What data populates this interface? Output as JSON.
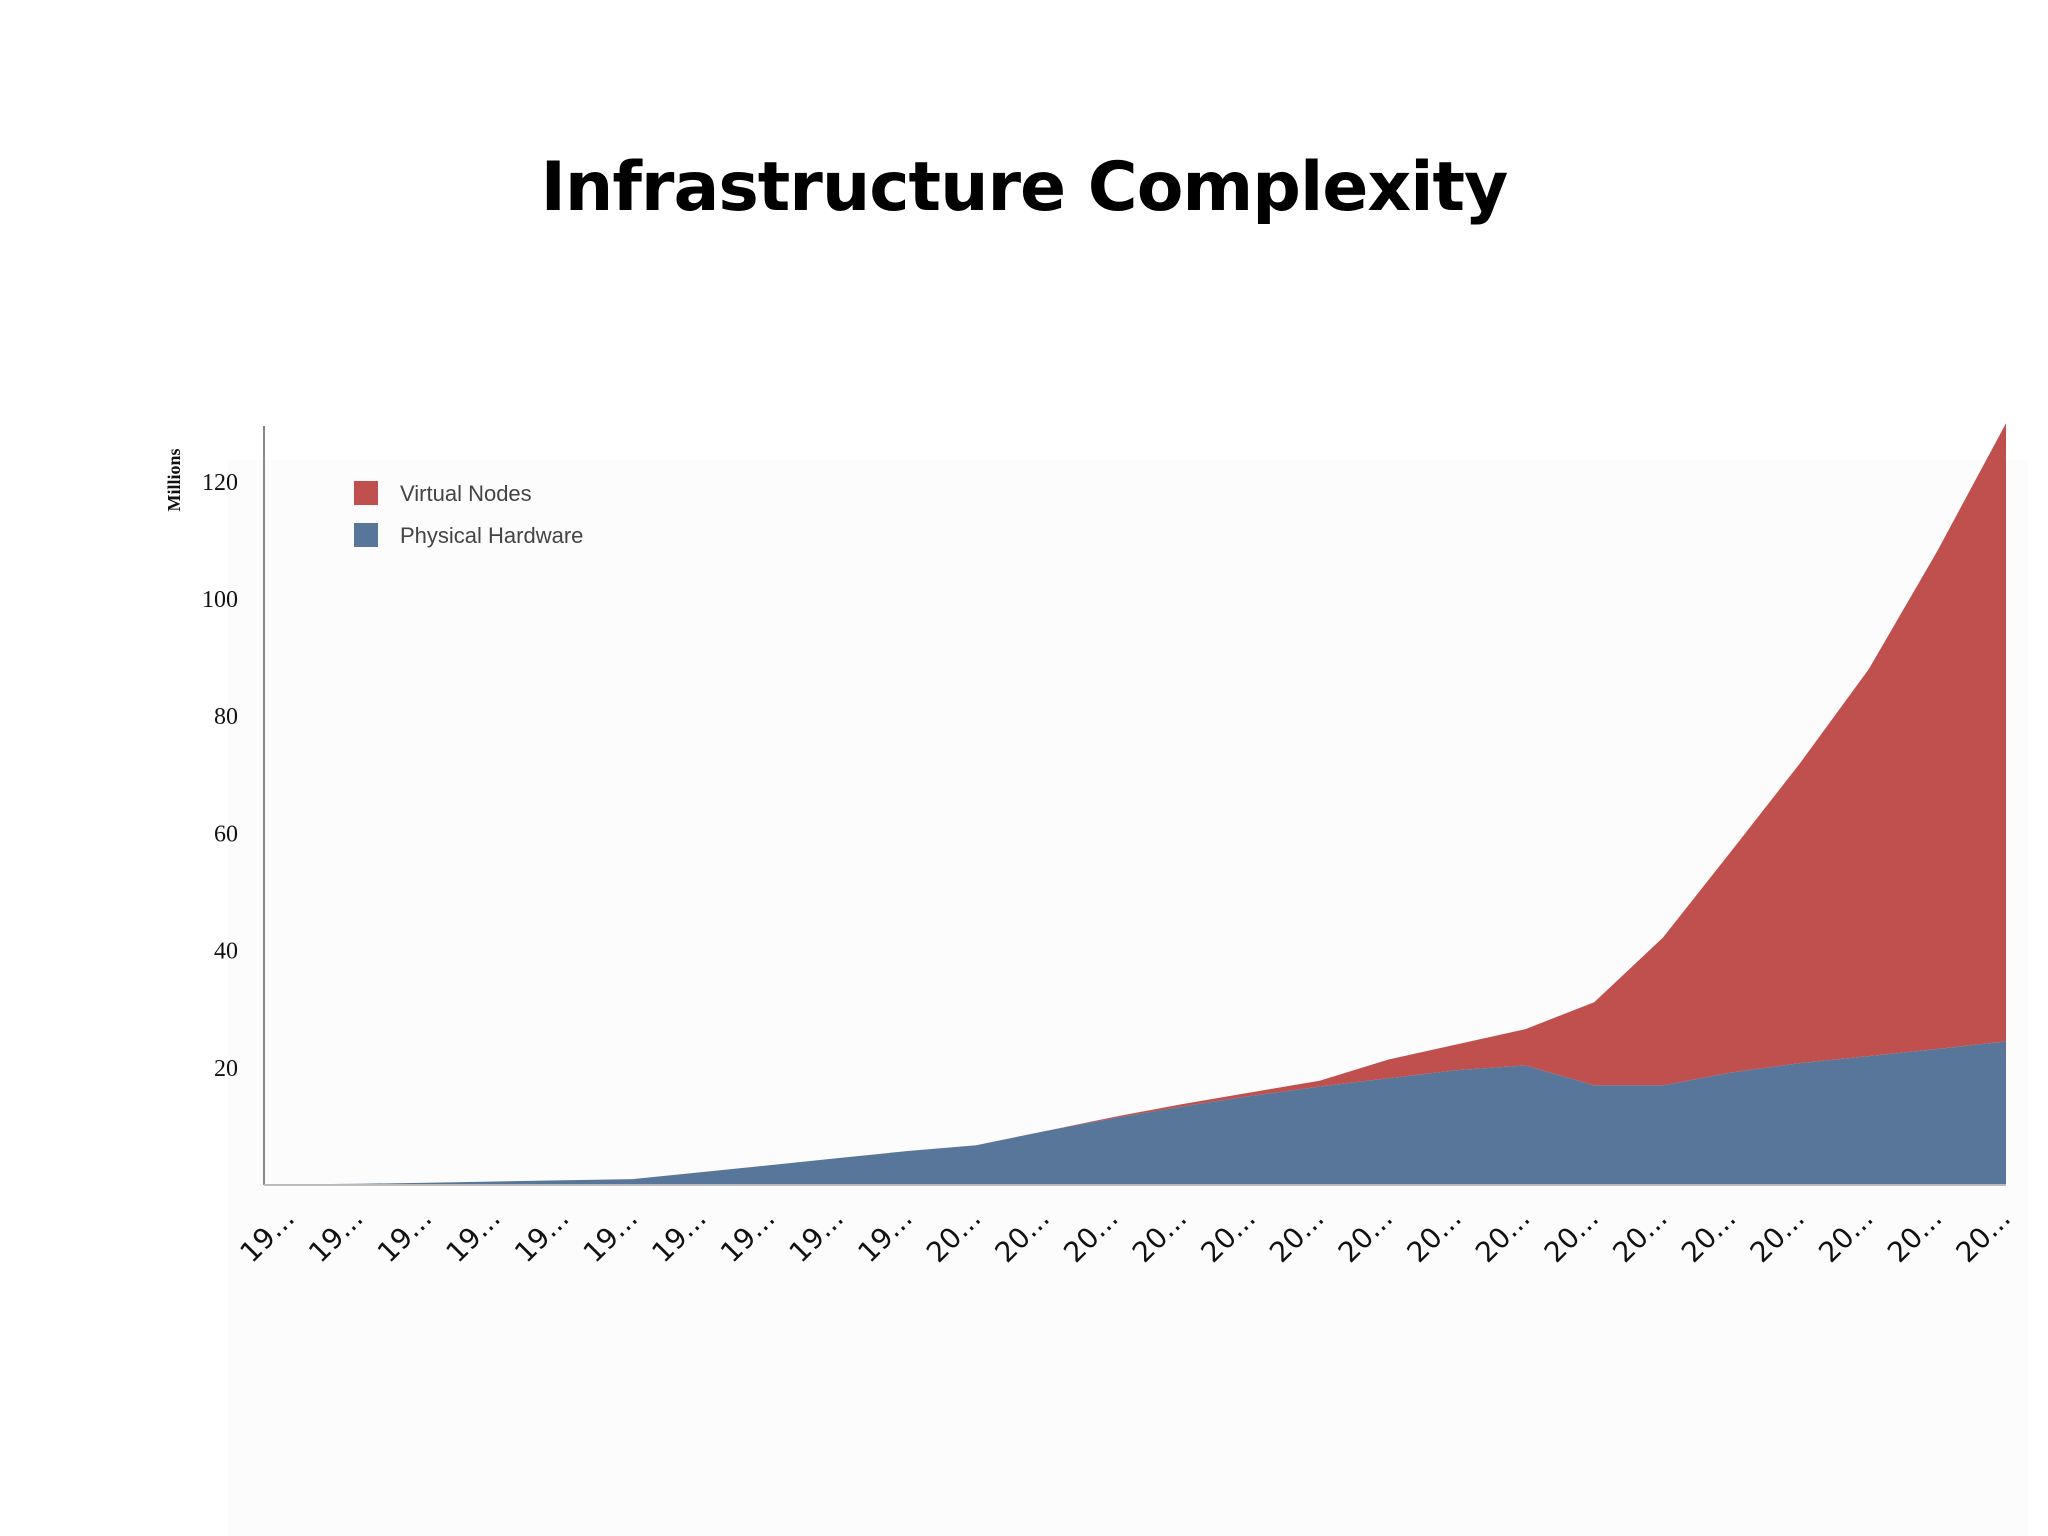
{
  "title": "Infrastructure Complexity",
  "chart_data": {
    "type": "area",
    "stacked": true,
    "title": "Infrastructure Complexity",
    "ylabel": "Millions",
    "xlabel": "",
    "ylim": [
      0,
      130
    ],
    "yticks": [
      20,
      40,
      60,
      80,
      100,
      120
    ],
    "x_tick_labels": [
      "19...",
      "19...",
      "19...",
      "19...",
      "19...",
      "19...",
      "19...",
      "19...",
      "19...",
      "19...",
      "20...",
      "20...",
      "20...",
      "20...",
      "20...",
      "20...",
      "20...",
      "20...",
      "20...",
      "20...",
      "20...",
      "20...",
      "20...",
      "20...",
      "20...",
      "20..."
    ],
    "series": [
      {
        "name": "Physical Hardware",
        "color": "#587699",
        "values": [
          0.1,
          0.2,
          0.4,
          0.6,
          0.8,
          1.0,
          2.2,
          3.4,
          4.6,
          5.8,
          6.8,
          9.2,
          11.4,
          13.4,
          15.2,
          16.8,
          18.2,
          19.6,
          20.4,
          17.0,
          17.0,
          19.2,
          20.8,
          22.0,
          23.2,
          24.5
        ]
      },
      {
        "name": "Virtual Nodes",
        "color": "#c0504d",
        "values": [
          0,
          0,
          0,
          0,
          0,
          0,
          0,
          0,
          0,
          0,
          0,
          0,
          0.2,
          0.4,
          0.6,
          1.0,
          3.2,
          4.4,
          6.2,
          14.2,
          25.2,
          37.8,
          51.2,
          66.0,
          85.0,
          105.5
        ]
      }
    ],
    "legend_position": "top-left",
    "grid": false
  }
}
